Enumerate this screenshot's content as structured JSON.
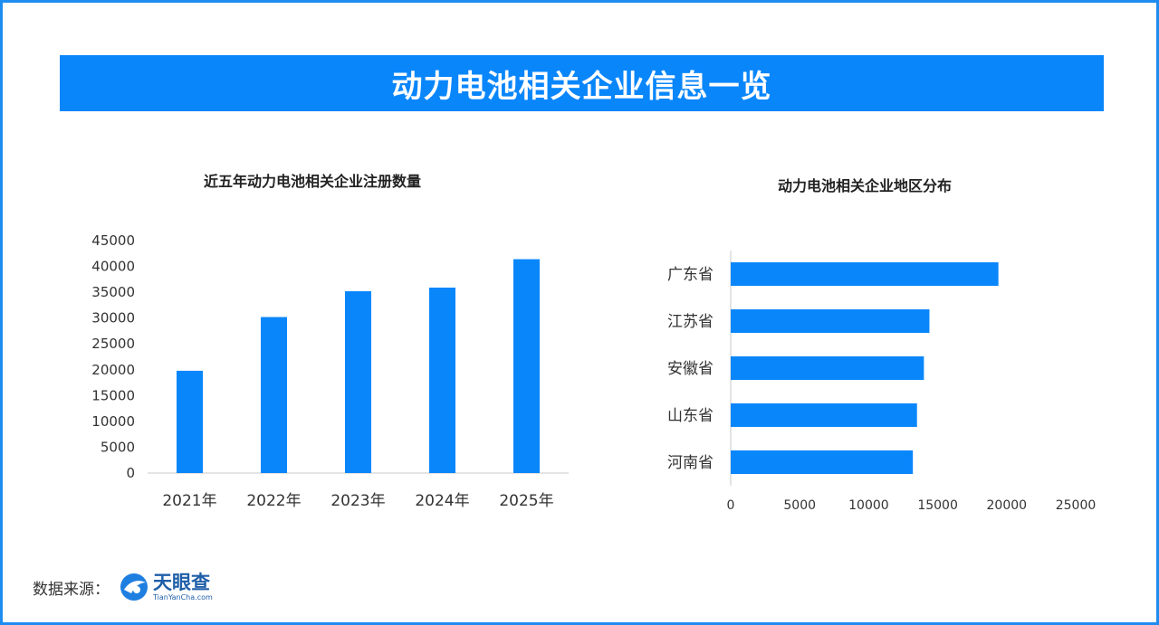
{
  "banner": {
    "title": "动力电池相关企业信息一览"
  },
  "footer": {
    "source_label": "数据来源：",
    "logo_name": "天眼查",
    "logo_domain": "TianYanCha.com"
  },
  "colors": {
    "bar": "#0a86fb",
    "banner": "#0a86fb",
    "frame": "#1e8cf0",
    "axis": "#c8c8c8"
  },
  "chart_data": [
    {
      "type": "bar",
      "title": "近五年动力电池相关企业注册数量",
      "categories": [
        "2021年",
        "2022年",
        "2023年",
        "2024年",
        "2025年"
      ],
      "values": [
        19800,
        30200,
        35200,
        35900,
        41400
      ],
      "ylim": [
        0,
        45000
      ],
      "yticks": [
        0,
        5000,
        10000,
        15000,
        20000,
        25000,
        30000,
        35000,
        40000,
        45000
      ],
      "xlabel": "",
      "ylabel": "",
      "grid": false,
      "legend": "none"
    },
    {
      "type": "bar",
      "orientation": "horizontal",
      "title": "动力电池相关企业地区分布",
      "categories": [
        "广东省",
        "江苏省",
        "安徽省",
        "山东省",
        "河南省"
      ],
      "values": [
        19400,
        14400,
        14000,
        13500,
        13200
      ],
      "xlim": [
        0,
        25000
      ],
      "xticks": [
        0,
        5000,
        10000,
        15000,
        20000,
        25000
      ],
      "xlabel": "",
      "ylabel": "",
      "grid": false,
      "legend": "none"
    }
  ]
}
